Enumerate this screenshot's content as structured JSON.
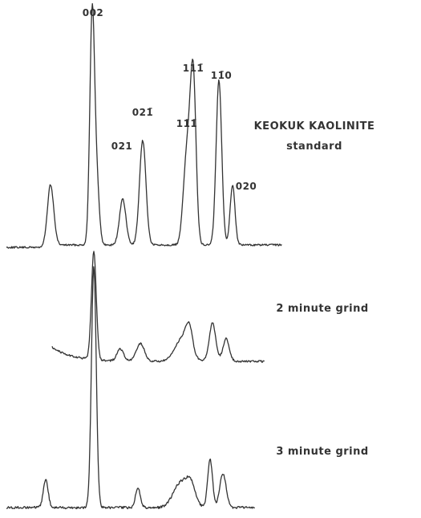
{
  "peak_labels": [
    "002",
    "021",
    "021̄",
    "11̄1̄",
    "111̄",
    "11̄0",
    "020"
  ],
  "traces": [
    {
      "label": [
        "KEOKUK KAOLINITE",
        "standard"
      ]
    },
    {
      "label": [
        "2 minute grind"
      ]
    },
    {
      "label": [
        "3 minute grind"
      ]
    }
  ]
}
